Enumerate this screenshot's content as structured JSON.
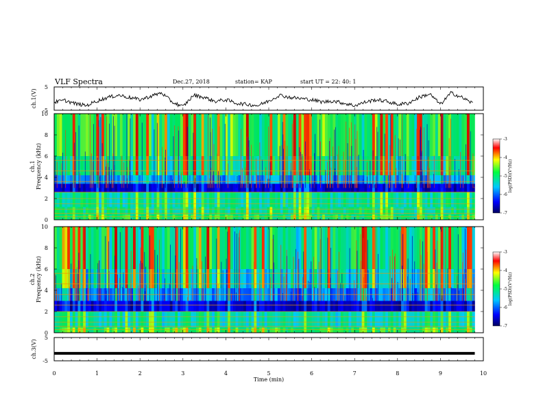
{
  "header": {
    "title": "VLF Spectra",
    "date": "Dec.27, 2018",
    "station": "station= KAP",
    "start": "start  UT =   22: 40: 1"
  },
  "colors": {
    "waveform": "#000000",
    "spec_low": "#0000c8",
    "spec_mid": "#22dd66",
    "spec_high": "#ff2a00"
  },
  "chart_data": [
    {
      "type": "line",
      "name": "ch1-waveform",
      "ylabel": "ch.1(V)",
      "ylim": [
        -5,
        5
      ],
      "yticks": [
        "5",
        "-5"
      ],
      "xlim": [
        0,
        10
      ],
      "x": [
        0,
        0.25,
        0.5,
        0.75,
        1,
        1.25,
        1.5,
        1.75,
        2,
        2.25,
        2.5,
        2.75,
        3,
        3.25,
        3.5,
        3.75,
        4,
        4.25,
        4.5,
        4.75,
        5,
        5.25,
        5.5,
        5.75,
        6,
        6.25,
        6.5,
        6.75,
        7,
        7.25,
        7.5,
        7.75,
        8,
        8.25,
        8.5,
        8.75,
        9,
        9.25,
        9.5,
        9.75
      ],
      "y": [
        -1.5,
        -0.8,
        -2.2,
        -3.0,
        -1.0,
        0.5,
        1.5,
        0.5,
        -0.5,
        1.0,
        2.5,
        -1.5,
        -3.5,
        1.5,
        0.5,
        -1.2,
        -0.5,
        -2.0,
        -2.5,
        -3.0,
        -1.0,
        1.5,
        0.5,
        0.0,
        -0.5,
        -1.5,
        -1.0,
        -2.0,
        -3.0,
        -1.5,
        -0.5,
        -1.2,
        -2.5,
        -2.0,
        0.5,
        2.0,
        -2.5,
        2.5,
        0.5,
        -2.0
      ]
    },
    {
      "type": "heatmap",
      "name": "ch1-spectrogram",
      "ylabel": "ch.1",
      "ylabel2": "Frequency (kHz)",
      "ylim": [
        0,
        10
      ],
      "yticks": [
        "0",
        "2",
        "4",
        "6",
        "8",
        "10"
      ],
      "xlim": [
        0,
        10
      ],
      "colorbar": {
        "label": "log(PSD)(V²/Hz)",
        "range": [
          -7,
          -3
        ],
        "ticks": [
          "-3",
          "-4",
          "-5",
          "-6",
          "-7"
        ]
      }
    },
    {
      "type": "heatmap",
      "name": "ch2-spectrogram",
      "ylabel": "ch.2",
      "ylabel2": "Frequency (kHz)",
      "ylim": [
        0,
        10
      ],
      "yticks": [
        "0",
        "2",
        "4",
        "6",
        "8",
        "10"
      ],
      "xlim": [
        0,
        10
      ],
      "colorbar": {
        "label": "log(PSD)(V²/Hz)",
        "range": [
          -7,
          -3
        ],
        "ticks": [
          "-3",
          "-4",
          "-5",
          "-6",
          "-7"
        ]
      }
    },
    {
      "type": "line",
      "name": "ch3-waveform",
      "ylabel": "ch.3(V)",
      "ylim": [
        -5,
        5
      ],
      "yticks": [
        "5",
        "-5"
      ],
      "xlim": [
        0,
        10
      ],
      "x": [
        0,
        9.8
      ],
      "y": [
        -1.8,
        -1.8
      ],
      "xlabel": "Time (min)",
      "xticks": [
        "0",
        "1",
        "2",
        "3",
        "4",
        "5",
        "6",
        "7",
        "8",
        "9",
        "10"
      ]
    }
  ]
}
